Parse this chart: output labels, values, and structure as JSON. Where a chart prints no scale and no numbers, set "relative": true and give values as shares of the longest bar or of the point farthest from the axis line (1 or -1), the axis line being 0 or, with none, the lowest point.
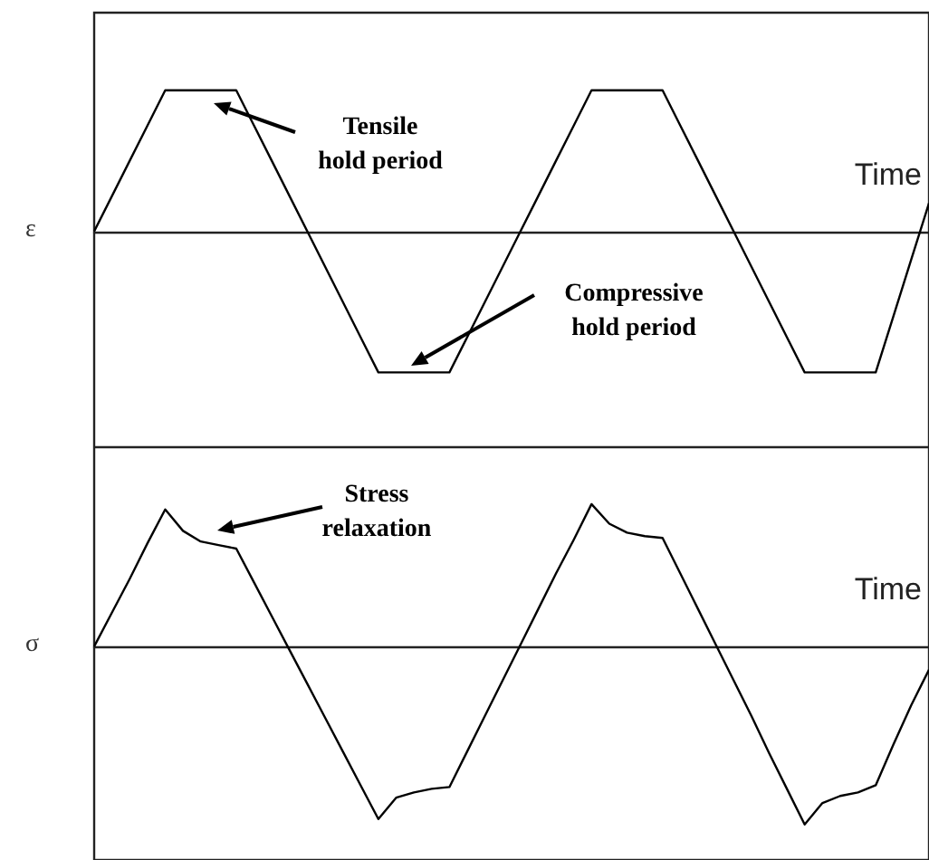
{
  "chart_data": [
    {
      "type": "line",
      "ylabel": "ε",
      "xlabel": "Time",
      "relative": true,
      "tick_labels": false,
      "marker": "none",
      "annotations": [
        "Tensile\nhold period",
        "Compressive\nhold period"
      ],
      "categories": [
        null,
        null,
        null,
        null,
        null,
        null,
        null,
        null,
        null,
        null,
        null,
        null,
        null,
        null,
        null,
        null,
        null,
        null,
        null,
        null,
        null,
        null,
        null,
        null,
        null,
        null,
        null,
        null,
        null,
        null,
        null,
        null,
        null,
        null,
        null,
        null,
        null,
        null,
        null,
        null,
        null,
        null,
        null,
        null,
        null,
        null,
        null,
        null
      ],
      "series": [
        {
          "color": "#000000",
          "values": [
            0,
            0.25,
            0.5,
            0.75,
            1,
            1,
            1,
            1,
            1,
            0.75,
            0.5,
            0.25,
            0,
            -0.25,
            -0.5,
            -0.75,
            -1,
            -1,
            -1,
            -1,
            -1,
            -0.75,
            -0.5,
            -0.25,
            0,
            0.25,
            0.5,
            0.75,
            1,
            1,
            1,
            1,
            1,
            0.75,
            0.5,
            0.25,
            0,
            -0.25,
            -0.5,
            -0.75,
            -1,
            -1,
            -1,
            -1,
            -1,
            -0.6,
            -0.2,
            0.2
          ]
        }
      ]
    },
    {
      "type": "line",
      "ylabel": "σ",
      "xlabel": "Time",
      "relative": true,
      "tick_labels": false,
      "marker": "none",
      "annotations": [
        "Stress\nrelaxation"
      ],
      "categories": [
        null,
        null,
        null,
        null,
        null,
        null,
        null,
        null,
        null,
        null,
        null,
        null,
        null,
        null,
        null,
        null,
        null,
        null,
        null,
        null,
        null,
        null,
        null,
        null,
        null,
        null,
        null,
        null,
        null,
        null,
        null,
        null,
        null,
        null,
        null,
        null,
        null,
        null,
        null,
        null,
        null,
        null,
        null,
        null,
        null,
        null,
        null,
        null
      ],
      "series": [
        {
          "color": "#000000",
          "values": [
            0,
            0.19,
            0.38,
            0.58,
            0.77,
            0.65,
            0.59,
            0.57,
            0.55,
            0.36,
            0.17,
            -0.02,
            -0.21,
            -0.4,
            -0.59,
            -0.78,
            -0.97,
            -0.85,
            -0.82,
            -0.8,
            -0.79,
            -0.59,
            -0.39,
            -0.19,
            0.01,
            0.21,
            0.41,
            0.6,
            0.8,
            0.69,
            0.64,
            0.62,
            0.61,
            0.41,
            0.21,
            0.01,
            -0.19,
            -0.39,
            -0.6,
            -0.8,
            -1,
            -0.88,
            -0.84,
            -0.82,
            -0.78,
            -0.55,
            -0.33,
            -0.13
          ]
        }
      ]
    }
  ]
}
